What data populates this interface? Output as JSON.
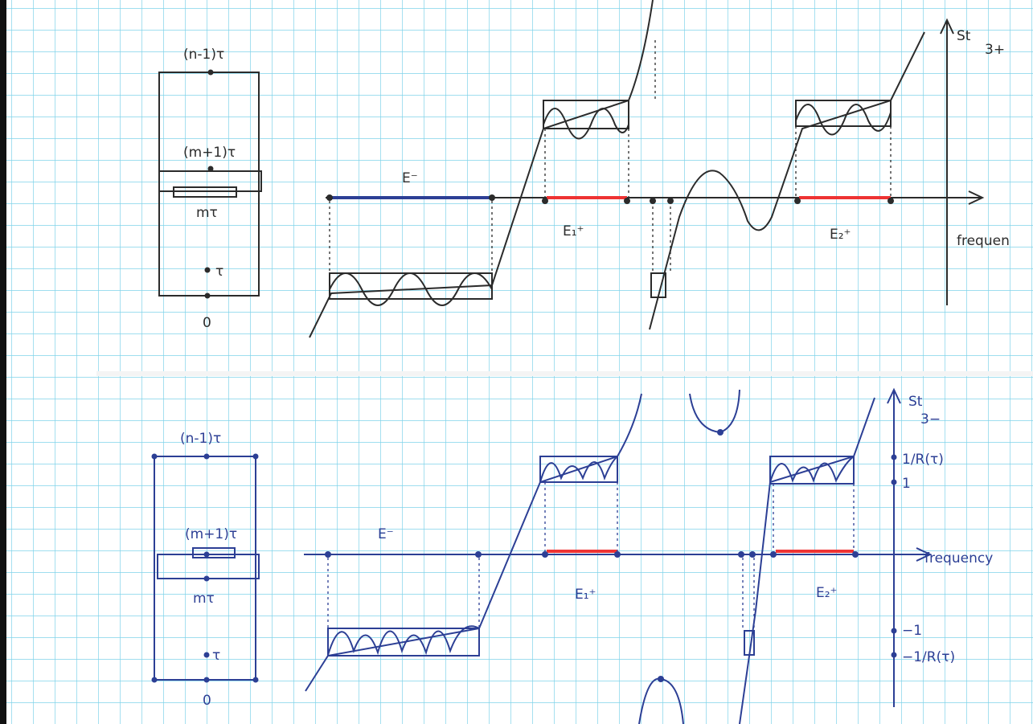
{
  "panels": [
    {
      "time_labels": [
        "(n-1)τ",
        "(m+1)τ",
        "mτ",
        "τ",
        "0"
      ],
      "regions": [
        "E⁻",
        "E₁⁺",
        "E₂⁺"
      ],
      "axis_label": "St",
      "axis_sub": "3+",
      "freq_label": "frequen"
    },
    {
      "time_labels": [
        "(n-1)τ",
        "(m+1)τ",
        "mτ",
        "τ",
        "0"
      ],
      "regions": [
        "E⁻",
        "E₁⁺",
        "E₂⁺"
      ],
      "axis_label": "St",
      "axis_sub": "3−",
      "freq_label": "frequency",
      "ticks": [
        "1/R(τ)",
        "1",
        "−1",
        "−1/R(τ)"
      ]
    }
  ]
}
